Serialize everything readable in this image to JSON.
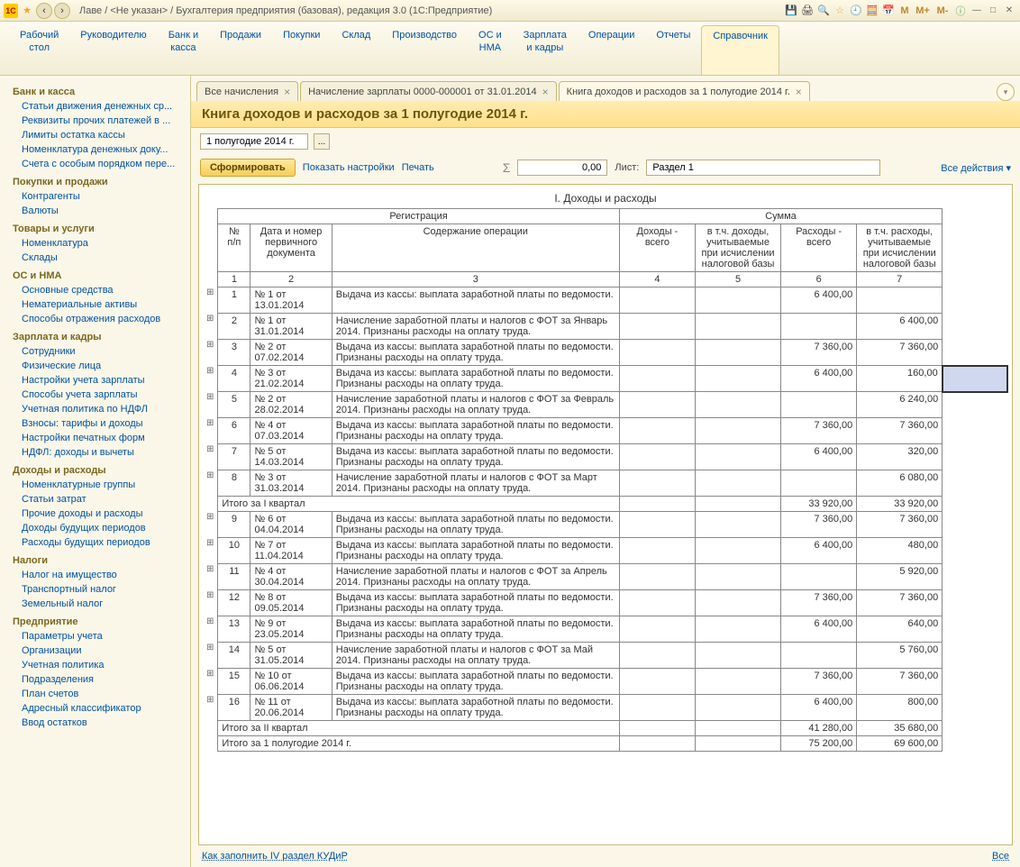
{
  "titlebar": {
    "text": "Лаве / <Не указан> / Бухгалтерия предприятия (базовая), редакция 3.0  (1С:Предприятие)",
    "m_labels": [
      "M",
      "M+",
      "M-"
    ]
  },
  "mainTabs": [
    {
      "label": "Рабочий\nстол"
    },
    {
      "label": "Руководителю"
    },
    {
      "label": "Банк и\nкасса"
    },
    {
      "label": "Продажи"
    },
    {
      "label": "Покупки"
    },
    {
      "label": "Склад"
    },
    {
      "label": "Производство"
    },
    {
      "label": "ОС и\nНМА"
    },
    {
      "label": "Зарплата\nи кадры"
    },
    {
      "label": "Операции"
    },
    {
      "label": "Отчеты"
    },
    {
      "label": "Справочник"
    }
  ],
  "sidebar": [
    {
      "title": "Банк и касса",
      "items": [
        "Статьи движения денежных ср...",
        "Реквизиты прочих платежей в ...",
        "Лимиты остатка кассы",
        "Номенклатура денежных доку...",
        "Счета с особым порядком пере..."
      ]
    },
    {
      "title": "Покупки и продажи",
      "items": [
        "Контрагенты",
        "Валюты"
      ]
    },
    {
      "title": "Товары и услуги",
      "items": [
        "Номенклатура",
        "Склады"
      ]
    },
    {
      "title": "ОС и НМА",
      "items": [
        "Основные средства",
        "Нематериальные активы",
        "Способы отражения расходов"
      ]
    },
    {
      "title": "Зарплата и кадры",
      "items": [
        "Сотрудники",
        "Физические лица",
        "Настройки учета зарплаты",
        "Способы учета зарплаты",
        "Учетная политика по НДФЛ",
        "Взносы: тарифы и доходы",
        "Настройки печатных форм",
        "НДФЛ: доходы и вычеты"
      ]
    },
    {
      "title": "Доходы и расходы",
      "items": [
        "Номенклатурные группы",
        "Статьи затрат",
        "Прочие доходы и расходы",
        "Доходы будущих периодов",
        "Расходы будущих периодов"
      ]
    },
    {
      "title": "Налоги",
      "items": [
        "Налог на имущество",
        "Транспортный налог",
        "Земельный налог"
      ]
    },
    {
      "title": "Предприятие",
      "items": [
        "Параметры учета",
        "Организации",
        "Учетная политика",
        "Подразделения",
        "План счетов",
        "Адресный классификатор",
        "Ввод остатков"
      ]
    }
  ],
  "docTabs": [
    {
      "label": "Все начисления",
      "active": false
    },
    {
      "label": "Начисление зарплаты 0000-000001 от 31.01.2014",
      "active": false
    },
    {
      "label": "Книга доходов и расходов за 1 полугодие 2014 г.",
      "active": true
    }
  ],
  "docTitle": "Книга доходов и расходов за 1 полугодие 2014 г.",
  "period": "1 полугодие 2014 г.",
  "toolbar": {
    "form": "Сформировать",
    "showSettings": "Показать настройки",
    "print": "Печать",
    "numValue": "0,00",
    "listLabel": "Лист:",
    "listValue": "Раздел 1",
    "allActions": "Все действия ▾"
  },
  "report": {
    "title": "I. Доходы и расходы",
    "headerGroups": {
      "reg": "Регистрация",
      "sum": "Сумма"
    },
    "headers": {
      "num": "№\nп/п",
      "doc": "Дата и номер первичного документа",
      "desc": "Содержание операции",
      "inc": "Доходы - всего",
      "incTax": "в т.ч. доходы, учитываемые при исчислении налоговой базы",
      "exp": "Расходы - всего",
      "expTax": "в т.ч. расходы, учитываемые при исчислении налоговой базы"
    },
    "colNums": [
      "1",
      "2",
      "3",
      "4",
      "5",
      "6",
      "7"
    ],
    "rows": [
      {
        "n": "1",
        "doc": "№ 1 от 13.01.2014",
        "desc": "Выдача из кассы: выплата заработной платы по ведомости.",
        "inc": "",
        "incTax": "",
        "exp": "6 400,00",
        "expTax": "",
        "expand": true
      },
      {
        "n": "2",
        "doc": "№ 1 от 31.01.2014",
        "desc": "Начисление заработной платы и налогов с ФОТ за Январь 2014. Признаны расходы на оплату труда.",
        "inc": "",
        "incTax": "",
        "exp": "",
        "expTax": "6 400,00",
        "expand": true
      },
      {
        "n": "3",
        "doc": "№ 2 от 07.02.2014",
        "desc": "Выдача из кассы: выплата заработной платы по ведомости. Признаны расходы на оплату труда.",
        "inc": "",
        "incTax": "",
        "exp": "7 360,00",
        "expTax": "7 360,00",
        "expand": true
      },
      {
        "n": "4",
        "doc": "№ 3 от 21.02.2014",
        "desc": "Выдача из кассы: выплата заработной платы по ведомости. Признаны расходы на оплату труда.",
        "inc": "",
        "incTax": "",
        "exp": "6 400,00",
        "expTax": "160,00",
        "expand": true,
        "highlight": true
      },
      {
        "n": "5",
        "doc": "№ 2 от 28.02.2014",
        "desc": "Начисление заработной платы и налогов с ФОТ за Февраль 2014. Признаны расходы на оплату труда.",
        "inc": "",
        "incTax": "",
        "exp": "",
        "expTax": "6 240,00",
        "expand": true
      },
      {
        "n": "6",
        "doc": "№ 4 от 07.03.2014",
        "desc": "Выдача из кассы: выплата заработной платы по ведомости. Признаны расходы на оплату труда.",
        "inc": "",
        "incTax": "",
        "exp": "7 360,00",
        "expTax": "7 360,00",
        "expand": true
      },
      {
        "n": "7",
        "doc": "№ 5 от 14.03.2014",
        "desc": "Выдача из кассы: выплата заработной платы по ведомости. Признаны расходы на оплату труда.",
        "inc": "",
        "incTax": "",
        "exp": "6 400,00",
        "expTax": "320,00",
        "expand": true
      },
      {
        "n": "8",
        "doc": "№ 3 от 31.03.2014",
        "desc": "Начисление заработной платы и налогов с ФОТ за Март 2014. Признаны расходы на оплату труда.",
        "inc": "",
        "incTax": "",
        "exp": "",
        "expTax": "6 080,00",
        "expand": true
      }
    ],
    "total1": {
      "label": "Итого за I квартал",
      "exp": "33 920,00",
      "expTax": "33 920,00"
    },
    "rows2": [
      {
        "n": "9",
        "doc": "№ 6 от 04.04.2014",
        "desc": "Выдача из кассы: выплата заработной платы по ведомости. Признаны расходы на оплату труда.",
        "inc": "",
        "incTax": "",
        "exp": "7 360,00",
        "expTax": "7 360,00",
        "expand": true
      },
      {
        "n": "10",
        "doc": "№ 7 от 11.04.2014",
        "desc": "Выдача из кассы: выплата заработной платы по ведомости. Признаны расходы на оплату труда.",
        "inc": "",
        "incTax": "",
        "exp": "6 400,00",
        "expTax": "480,00",
        "expand": true
      },
      {
        "n": "11",
        "doc": "№ 4 от 30.04.2014",
        "desc": "Начисление заработной платы и налогов с ФОТ за Апрель 2014. Признаны расходы на оплату труда.",
        "inc": "",
        "incTax": "",
        "exp": "",
        "expTax": "5 920,00",
        "expand": true
      },
      {
        "n": "12",
        "doc": "№ 8 от 09.05.2014",
        "desc": "Выдача из кассы: выплата заработной платы по ведомости. Признаны расходы на оплату труда.",
        "inc": "",
        "incTax": "",
        "exp": "7 360,00",
        "expTax": "7 360,00",
        "expand": true
      },
      {
        "n": "13",
        "doc": "№ 9 от 23.05.2014",
        "desc": "Выдача из кассы: выплата заработной платы по ведомости. Признаны расходы на оплату труда.",
        "inc": "",
        "incTax": "",
        "exp": "6 400,00",
        "expTax": "640,00",
        "expand": true
      },
      {
        "n": "14",
        "doc": "№ 5 от 31.05.2014",
        "desc": "Начисление заработной платы и налогов с ФОТ за Май 2014. Признаны расходы на оплату труда.",
        "inc": "",
        "incTax": "",
        "exp": "",
        "expTax": "5 760,00",
        "expand": true
      },
      {
        "n": "15",
        "doc": "№ 10 от 06.06.2014",
        "desc": "Выдача из кассы: выплата заработной платы по ведомости. Признаны расходы на оплату труда.",
        "inc": "",
        "incTax": "",
        "exp": "7 360,00",
        "expTax": "7 360,00",
        "expand": true
      },
      {
        "n": "16",
        "doc": "№ 11 от 20.06.2014",
        "desc": "Выдача из кассы: выплата заработной платы по ведомости. Признаны расходы на оплату труда.",
        "inc": "",
        "incTax": "",
        "exp": "6 400,00",
        "expTax": "800,00",
        "expand": true
      }
    ],
    "total2": {
      "label": "Итого за II квартал",
      "exp": "41 280,00",
      "expTax": "35 680,00"
    },
    "total3": {
      "label": "Итого за 1 полугодие 2014 г.",
      "exp": "75 200,00",
      "expTax": "69 600,00"
    }
  },
  "footer": {
    "link": "Как заполнить IV раздел КУДиР",
    "all": "Все"
  }
}
